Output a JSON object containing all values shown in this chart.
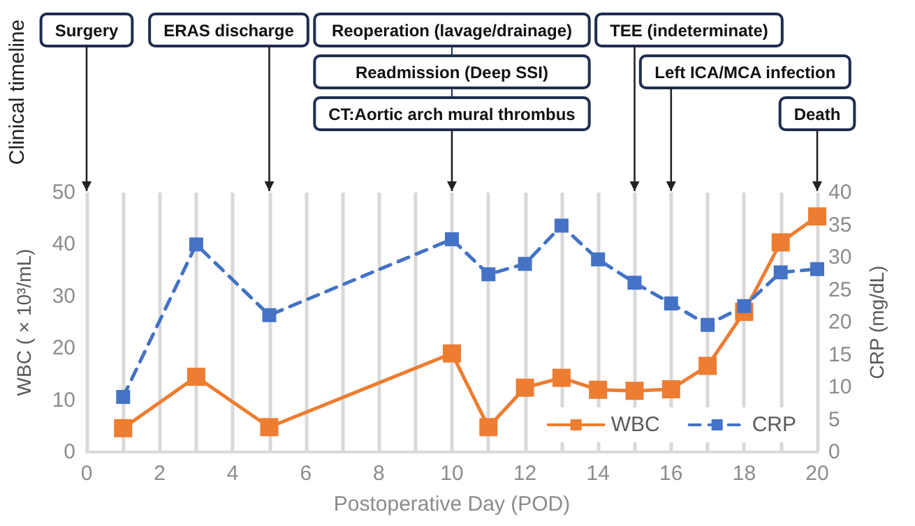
{
  "chart_data": {
    "type": "line",
    "xlabel": "Postoperative Day (POD)",
    "ylabel": "WBC ( × 10³/mL)",
    "y2label": "CRP (mg/dL)",
    "x": [
      1,
      3,
      5,
      10,
      11,
      12,
      13,
      14,
      15,
      16,
      17,
      18,
      19,
      20
    ],
    "series": [
      {
        "name": "WBC",
        "color": "#ed7d31",
        "line_style": "solid",
        "values": [
          4.6,
          14.5,
          4.8,
          19.0,
          4.8,
          12.4,
          14.3,
          12.0,
          11.8,
          12.1,
          16.6,
          27.0,
          40.4,
          45.4
        ]
      },
      {
        "name": "CRP",
        "color": "#4472c4",
        "line_style": "dashed",
        "axis": "y2",
        "values": [
          8.5,
          32.0,
          21.1,
          32.8,
          27.4,
          29.0,
          34.9,
          29.7,
          26.1,
          22.9,
          19.6,
          22.5,
          27.7,
          28.2
        ]
      }
    ],
    "xlim": [
      0,
      20
    ],
    "xticks": [
      0,
      {
        "value": 1,
        "label": null
      },
      2,
      {
        "value": 3,
        "label": null
      },
      4,
      {
        "value": 5,
        "label": null
      },
      6,
      {
        "value": 7,
        "label": null
      },
      8,
      {
        "value": 9,
        "label": null
      },
      10,
      {
        "value": 11,
        "label": null
      },
      12,
      {
        "value": 13,
        "label": null
      },
      14,
      {
        "value": 15,
        "label": null
      },
      16,
      {
        "value": 17,
        "label": null
      },
      18,
      {
        "value": 19,
        "label": null
      },
      20
    ],
    "ylim": [
      0,
      50
    ],
    "yticks": [
      0,
      10,
      20,
      30,
      40,
      50
    ],
    "y2lim": [
      0,
      40
    ],
    "y2ticks": [
      0,
      5,
      10,
      15,
      20,
      25,
      30,
      35,
      40
    ],
    "grid": "x",
    "legend": "bottom right",
    "marker": "square",
    "annotations": [
      "Clinical timeline"
    ],
    "ref_lines": [
      {
        "axis": "x",
        "value": 0,
        "label": "Surgery"
      },
      {
        "axis": "x",
        "value": 5,
        "label": "ERAS discharge"
      },
      {
        "axis": "x",
        "value": 10,
        "label": "Reoperation (lavage/drainage)"
      },
      {
        "axis": "x",
        "value": 10,
        "label": "Readmission (Deep SSI)"
      },
      {
        "axis": "x",
        "value": 10,
        "label": "CT:Aortic arch mural thrombus"
      },
      {
        "axis": "x",
        "value": 15,
        "label": "TEE (indeterminate)"
      },
      {
        "axis": "x",
        "value": 16,
        "label": "Left ICA/MCA infection"
      },
      {
        "axis": "x",
        "value": 20,
        "label": "Death"
      }
    ]
  }
}
